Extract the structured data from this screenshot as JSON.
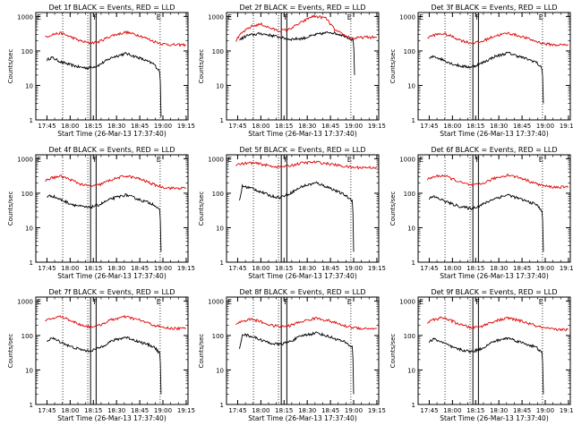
{
  "chart_data": [
    {
      "type": "line",
      "title": "Det 1f BLACK = Events, RED = LLD",
      "xlabel": "Start Time (26-Mar-13 17:37:40)",
      "ylabel": "Counts/sec",
      "xticks": [
        "17:45",
        "18:00",
        "18:15",
        "18:30",
        "18:45",
        "19:00",
        "19:15"
      ],
      "yticks": [
        "1",
        "10",
        "100",
        "1000"
      ],
      "series": [
        {
          "name": "Events",
          "color": "#000000",
          "x": [
            17.75,
            17.8,
            17.9,
            18.0,
            18.1,
            18.2,
            18.3,
            18.45,
            18.6,
            18.75,
            18.9,
            18.97,
            18.98
          ],
          "y": [
            55,
            65,
            48,
            40,
            34,
            32,
            38,
            65,
            85,
            62,
            42,
            25,
            1.2
          ]
        },
        {
          "name": "LLD",
          "color": "#e00000",
          "x": [
            17.73,
            17.8,
            17.9,
            18.0,
            18.1,
            18.2,
            18.3,
            18.45,
            18.6,
            18.75,
            18.9,
            19.0,
            19.1,
            19.2,
            19.25
          ],
          "y": [
            250,
            300,
            330,
            260,
            200,
            170,
            180,
            280,
            350,
            280,
            190,
            160,
            150,
            150,
            150
          ]
        }
      ]
    },
    {
      "type": "line",
      "title": "Det 2f BLACK = Events, RED = LLD",
      "xlabel": "Start Time (26-Mar-13 17:37:40)",
      "ylabel": "Counts/sec",
      "xticks": [
        "17:45",
        "18:00",
        "18:15",
        "18:30",
        "18:45",
        "19:00",
        "19:15"
      ],
      "yticks": [
        "1",
        "10",
        "100",
        "1000"
      ],
      "series": [
        {
          "name": "Events",
          "color": "#000000",
          "x": [
            17.77,
            17.85,
            18.0,
            18.15,
            18.3,
            18.45,
            18.6,
            18.75,
            18.9,
            19.0,
            19.01
          ],
          "y": [
            210,
            280,
            320,
            270,
            220,
            230,
            300,
            350,
            280,
            200,
            20
          ]
        },
        {
          "name": "LLD",
          "color": "#e00000",
          "x": [
            17.73,
            17.8,
            17.9,
            18.0,
            18.1,
            18.2,
            18.3,
            18.45,
            18.55,
            18.6,
            18.7,
            18.8,
            18.9,
            19.0,
            19.1,
            19.25
          ],
          "y": [
            200,
            340,
            520,
            600,
            460,
            380,
            420,
            700,
            1000,
            1000,
            900,
            400,
            280,
            230,
            250,
            250
          ]
        }
      ]
    },
    {
      "type": "line",
      "title": "Det 3f BLACK = Events, RED = LLD",
      "xlabel": "Start Time (26-Mar-13 17:37:40)",
      "ylabel": "Counts/sec",
      "xticks": [
        "17:45",
        "18:00",
        "18:15",
        "18:30",
        "18:45",
        "19:00",
        "19:15"
      ],
      "yticks": [
        "1",
        "10",
        "100",
        "1000"
      ],
      "series": [
        {
          "name": "Events",
          "color": "#000000",
          "x": [
            17.75,
            17.8,
            17.9,
            18.0,
            18.1,
            18.2,
            18.3,
            18.45,
            18.6,
            18.75,
            18.9,
            18.97,
            18.98
          ],
          "y": [
            60,
            70,
            55,
            42,
            36,
            34,
            42,
            68,
            88,
            65,
            48,
            30,
            3
          ]
        },
        {
          "name": "LLD",
          "color": "#e00000",
          "x": [
            17.73,
            17.8,
            17.9,
            18.0,
            18.1,
            18.2,
            18.3,
            18.45,
            18.6,
            18.75,
            18.9,
            19.0,
            19.1,
            19.2,
            19.25
          ],
          "y": [
            240,
            290,
            320,
            260,
            200,
            170,
            180,
            270,
            330,
            260,
            190,
            160,
            150,
            150,
            150
          ]
        }
      ]
    },
    {
      "type": "line",
      "title": "Det 4f BLACK = Events, RED = LLD",
      "xlabel": "Start Time (26-Mar-13 17:37:40)",
      "ylabel": "Counts/sec",
      "xticks": [
        "17:45",
        "18:00",
        "18:15",
        "18:30",
        "18:45",
        "19:00",
        "19:15"
      ],
      "yticks": [
        "1",
        "10",
        "100",
        "1000"
      ],
      "series": [
        {
          "name": "Events",
          "color": "#000000",
          "x": [
            17.75,
            17.8,
            17.9,
            18.0,
            18.1,
            18.2,
            18.3,
            18.45,
            18.6,
            18.75,
            18.9,
            18.97,
            18.98
          ],
          "y": [
            80,
            85,
            65,
            50,
            42,
            38,
            45,
            70,
            90,
            65,
            48,
            30,
            2
          ]
        },
        {
          "name": "LLD",
          "color": "#e00000",
          "x": [
            17.73,
            17.8,
            17.9,
            18.0,
            18.1,
            18.2,
            18.3,
            18.45,
            18.6,
            18.75,
            18.9,
            19.0,
            19.1,
            19.2,
            19.25
          ],
          "y": [
            230,
            280,
            310,
            250,
            190,
            160,
            170,
            250,
            320,
            260,
            180,
            150,
            140,
            140,
            140
          ]
        }
      ]
    },
    {
      "type": "line",
      "title": "Det 5f BLACK = Events, RED = LLD",
      "xlabel": "Start Time (26-Mar-13 17:37:40)",
      "ylabel": "Counts/sec",
      "xticks": [
        "17:45",
        "18:00",
        "18:15",
        "18:30",
        "18:45",
        "19:00",
        "19:15"
      ],
      "yticks": [
        "1",
        "10",
        "100",
        "1000"
      ],
      "series": [
        {
          "name": "Events",
          "color": "#000000",
          "x": [
            17.77,
            17.8,
            17.9,
            18.0,
            18.1,
            18.2,
            18.3,
            18.45,
            18.6,
            18.75,
            18.9,
            18.99,
            19.0
          ],
          "y": [
            60,
            160,
            140,
            110,
            85,
            75,
            95,
            160,
            200,
            140,
            90,
            60,
            2
          ]
        },
        {
          "name": "LLD",
          "color": "#e00000",
          "x": [
            17.73,
            17.8,
            17.9,
            18.0,
            18.1,
            18.2,
            18.3,
            18.45,
            18.6,
            18.75,
            18.9,
            19.0,
            19.1,
            19.2,
            19.25
          ],
          "y": [
            680,
            720,
            760,
            700,
            620,
            580,
            620,
            760,
            800,
            700,
            600,
            560,
            560,
            560,
            560
          ]
        }
      ]
    },
    {
      "type": "line",
      "title": "Det 6f BLACK = Events, RED = LLD",
      "xlabel": "Start Time (26-Mar-13 17:37:40)",
      "ylabel": "Counts/sec",
      "xticks": [
        "17:45",
        "18:00",
        "18:15",
        "18:30",
        "18:45",
        "19:00",
        "19:15"
      ],
      "yticks": [
        "1",
        "10",
        "100",
        "1000"
      ],
      "series": [
        {
          "name": "Events",
          "color": "#000000",
          "x": [
            17.75,
            17.8,
            17.9,
            18.0,
            18.1,
            18.2,
            18.3,
            18.45,
            18.6,
            18.75,
            18.9,
            18.97,
            18.98
          ],
          "y": [
            70,
            80,
            62,
            48,
            40,
            36,
            44,
            70,
            90,
            65,
            48,
            30,
            2
          ]
        },
        {
          "name": "LLD",
          "color": "#e00000",
          "x": [
            17.73,
            17.8,
            17.9,
            18.0,
            18.1,
            18.2,
            18.3,
            18.45,
            18.6,
            18.75,
            18.9,
            19.0,
            19.1,
            19.2,
            19.25
          ],
          "y": [
            250,
            300,
            330,
            260,
            200,
            170,
            180,
            270,
            340,
            270,
            190,
            160,
            150,
            150,
            150
          ]
        }
      ]
    },
    {
      "type": "line",
      "title": "Det 7f BLACK = Events, RED = LLD",
      "xlabel": "Start Time (26-Mar-13 17:37:40)",
      "ylabel": "Counts/sec",
      "xticks": [
        "17:45",
        "18:00",
        "18:15",
        "18:30",
        "18:45",
        "19:00",
        "19:15"
      ],
      "yticks": [
        "1",
        "10",
        "100",
        "1000"
      ],
      "series": [
        {
          "name": "Events",
          "color": "#000000",
          "x": [
            17.75,
            17.8,
            17.9,
            18.0,
            18.1,
            18.2,
            18.3,
            18.45,
            18.6,
            18.75,
            18.9,
            18.97,
            18.98
          ],
          "y": [
            70,
            85,
            65,
            48,
            40,
            35,
            42,
            70,
            90,
            65,
            48,
            30,
            2
          ]
        },
        {
          "name": "LLD",
          "color": "#e00000",
          "x": [
            17.73,
            17.8,
            17.9,
            18.0,
            18.1,
            18.2,
            18.3,
            18.45,
            18.6,
            18.75,
            18.9,
            19.0,
            19.1,
            19.2,
            19.25
          ],
          "y": [
            260,
            310,
            360,
            280,
            210,
            180,
            190,
            290,
            350,
            280,
            200,
            170,
            160,
            160,
            160
          ]
        }
      ]
    },
    {
      "type": "line",
      "title": "Det 8f BLACK = Events, RED = LLD",
      "xlabel": "Start Time (26-Mar-13 17:37:40)",
      "ylabel": "Counts/sec",
      "xticks": [
        "17:45",
        "18:00",
        "18:15",
        "18:30",
        "18:45",
        "19:00",
        "19:15"
      ],
      "yticks": [
        "1",
        "10",
        "100",
        "1000"
      ],
      "series": [
        {
          "name": "Events",
          "color": "#000000",
          "x": [
            17.77,
            17.8,
            17.9,
            18.0,
            18.1,
            18.2,
            18.3,
            18.45,
            18.6,
            18.75,
            18.9,
            18.99,
            19.0
          ],
          "y": [
            40,
            110,
            95,
            75,
            60,
            55,
            65,
            100,
            120,
            90,
            65,
            45,
            2
          ]
        },
        {
          "name": "LLD",
          "color": "#e00000",
          "x": [
            17.73,
            17.8,
            17.9,
            18.0,
            18.1,
            18.2,
            18.3,
            18.45,
            18.6,
            18.75,
            18.9,
            19.0,
            19.1,
            19.2,
            19.25
          ],
          "y": [
            220,
            260,
            300,
            250,
            200,
            180,
            190,
            260,
            320,
            260,
            190,
            170,
            160,
            160,
            160
          ]
        }
      ]
    },
    {
      "type": "line",
      "title": "Det 9f BLACK = Events, RED = LLD",
      "xlabel": "Start Time (26-Mar-13 17:37:40)",
      "ylabel": "Counts/sec",
      "xticks": [
        "17:45",
        "18:00",
        "18:15",
        "18:30",
        "18:45",
        "19:00",
        "19:15"
      ],
      "yticks": [
        "1",
        "10",
        "100",
        "1000"
      ],
      "series": [
        {
          "name": "Events",
          "color": "#000000",
          "x": [
            17.75,
            17.8,
            17.9,
            18.0,
            18.1,
            18.2,
            18.3,
            18.45,
            18.6,
            18.75,
            18.9,
            18.97,
            18.98
          ],
          "y": [
            65,
            80,
            62,
            45,
            38,
            34,
            40,
            68,
            85,
            62,
            46,
            30,
            2
          ]
        },
        {
          "name": "LLD",
          "color": "#e00000",
          "x": [
            17.73,
            17.8,
            17.9,
            18.0,
            18.1,
            18.2,
            18.3,
            18.45,
            18.6,
            18.75,
            18.9,
            19.0,
            19.1,
            19.2,
            19.25
          ],
          "y": [
            240,
            290,
            330,
            260,
            200,
            170,
            180,
            260,
            320,
            260,
            190,
            160,
            150,
            150,
            150
          ]
        }
      ]
    }
  ],
  "markers": {
    "dotted_x": [
      17.92,
      18.19,
      18.97
    ],
    "box_x": [
      18.22,
      18.28
    ],
    "letters": [
      {
        "text": "E",
        "x": 17.64
      },
      {
        "text": "F",
        "x": 18.25
      },
      {
        "text": "E",
        "x": 18.93
      }
    ]
  },
  "axes": {
    "xmin": 17.63,
    "xmax": 19.27,
    "ymin": 1,
    "ymax": 1300
  }
}
